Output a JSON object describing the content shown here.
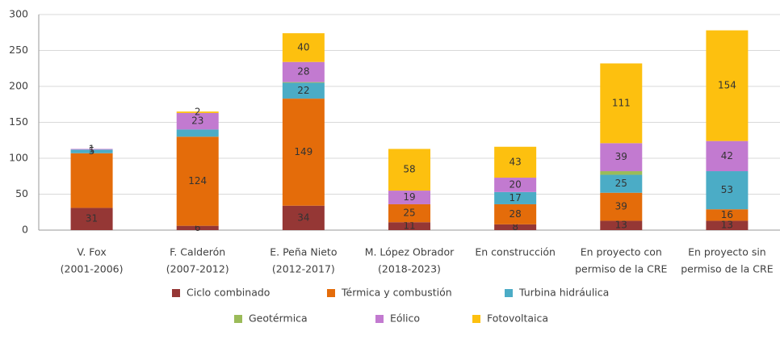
{
  "chart_data": {
    "type": "stacked_bar",
    "categories": [
      [
        "V. Fox",
        "(2001-2006)"
      ],
      [
        "F. Calderón",
        "(2007-2012)"
      ],
      [
        "E. Peña Nieto",
        "(2012-2017)"
      ],
      [
        "M. López Obrador",
        "(2018-2023)"
      ],
      [
        "En construcción"
      ],
      [
        "En proyecto con",
        "permiso de la CRE"
      ],
      [
        "En proyecto sin",
        "permiso de la CRE"
      ]
    ],
    "series": [
      {
        "name": "Ciclo combinado",
        "color": "#953735",
        "values": [
          31,
          6,
          34,
          11,
          8,
          13,
          13
        ],
        "value_labels": [
          "31",
          "6",
          "34",
          "11",
          "8",
          "13",
          "13"
        ]
      },
      {
        "name": "Térmica y combustión",
        "color": "#e46c0a",
        "values": [
          76,
          124,
          149,
          25,
          28,
          39,
          16
        ],
        "value_labels": [
          null,
          "124",
          "149",
          "25",
          "28",
          "39",
          "16"
        ]
      },
      {
        "name": "Turbina hidráulica",
        "color": "#4bacc6",
        "values": [
          5,
          10,
          22,
          0,
          17,
          25,
          53
        ],
        "value_labels": [
          "5",
          null,
          "22",
          null,
          "17",
          "25",
          "53"
        ]
      },
      {
        "name": "Geotérmica",
        "color": "#9bbb59",
        "values": [
          0,
          0,
          1,
          0,
          0,
          5,
          0
        ],
        "value_labels": [
          null,
          null,
          null,
          null,
          null,
          null,
          null
        ]
      },
      {
        "name": "Eólico",
        "color": "#c27ad0",
        "values": [
          1,
          23,
          28,
          19,
          20,
          39,
          42
        ],
        "value_labels": [
          "1",
          "23",
          "28",
          "19",
          "20",
          "39",
          "42"
        ]
      },
      {
        "name": "Fotovoltaica",
        "color": "#fdc00f",
        "values": [
          0,
          2,
          40,
          58,
          43,
          111,
          154
        ],
        "value_labels": [
          null,
          "2",
          "40",
          "58",
          "43",
          "111",
          "154"
        ]
      }
    ],
    "ylim": [
      0,
      300
    ],
    "yticks": [
      0,
      50,
      100,
      150,
      200,
      250,
      300
    ],
    "grid": true
  }
}
